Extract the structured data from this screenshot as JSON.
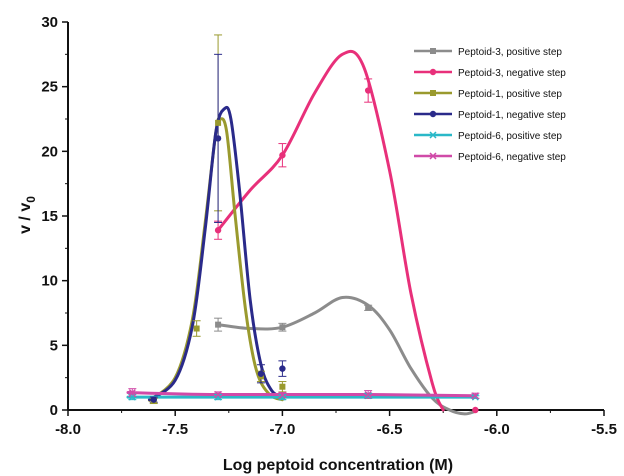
{
  "chart_data": {
    "type": "line",
    "title": "",
    "xlabel": "Log peptoid concentration (M)",
    "ylabel": "v / v",
    "ylabel_subscript": "0",
    "xlim": [
      -8.0,
      -5.5
    ],
    "ylim": [
      0,
      30
    ],
    "xticks": [
      -8.0,
      -7.5,
      -7.0,
      -6.5,
      -6.0,
      -5.5
    ],
    "xtick_labels": [
      "-8.0",
      "-7.5",
      "-7.0",
      "-6.5",
      "-6.0",
      "-5.5"
    ],
    "yticks": [
      0,
      5,
      10,
      15,
      20,
      25,
      30
    ],
    "ytick_labels": [
      "0",
      "5",
      "10",
      "15",
      "20",
      "25",
      "30"
    ],
    "grid": false,
    "legend_position": "top-right",
    "series": [
      {
        "name": "Peptoid-3, positive step",
        "color": "#8c8c8c",
        "marker": "square",
        "points": [
          {
            "x": -7.3,
            "y": 6.6,
            "err": 0.5
          },
          {
            "x": -7.0,
            "y": 6.4,
            "err": 0.3
          },
          {
            "x": -6.6,
            "y": 7.9,
            "err": 0.2
          }
        ],
        "curve": [
          [
            -7.3,
            6.6
          ],
          [
            -7.15,
            6.3
          ],
          [
            -7.0,
            6.4
          ],
          [
            -6.85,
            7.5
          ],
          [
            -6.72,
            8.7
          ],
          [
            -6.6,
            8.1
          ],
          [
            -6.5,
            6.2
          ],
          [
            -6.4,
            3.2
          ],
          [
            -6.3,
            0.9
          ],
          [
            -6.22,
            0.0
          ],
          [
            -6.15,
            -0.3
          ],
          [
            -6.1,
            -0.1
          ]
        ]
      },
      {
        "name": "Peptoid-3, negative step",
        "color": "#e8307a",
        "marker": "circle",
        "points": [
          {
            "x": -7.3,
            "y": 13.9,
            "err": 0.7
          },
          {
            "x": -7.0,
            "y": 19.7,
            "err": 0.9
          },
          {
            "x": -6.6,
            "y": 24.7,
            "err": 0.9
          },
          {
            "x": -6.1,
            "y": 0.0,
            "err": 0.0
          }
        ],
        "curve": [
          [
            -7.3,
            13.9
          ],
          [
            -7.15,
            17.0
          ],
          [
            -7.0,
            19.7
          ],
          [
            -6.85,
            24.5
          ],
          [
            -6.72,
            27.5
          ],
          [
            -6.62,
            26.5
          ],
          [
            -6.5,
            18.5
          ],
          [
            -6.4,
            9.0
          ],
          [
            -6.3,
            2.0
          ],
          [
            -6.25,
            0.0
          ]
        ]
      },
      {
        "name": "Peptoid-1, positive step",
        "color": "#9a9a2e",
        "marker": "square",
        "points": [
          {
            "x": -7.6,
            "y": 0.7,
            "err": 0.2
          },
          {
            "x": -7.4,
            "y": 6.3,
            "err": 0.6
          },
          {
            "x": -7.3,
            "y": 22.2,
            "err": 6.8
          },
          {
            "x": -7.1,
            "y": 2.6,
            "err": 0.4
          },
          {
            "x": -7.0,
            "y": 1.8,
            "err": 0.4
          }
        ],
        "curve": [
          [
            -7.62,
            0.75
          ],
          [
            -7.5,
            2.5
          ],
          [
            -7.42,
            7.0
          ],
          [
            -7.36,
            14.5
          ],
          [
            -7.31,
            21.5
          ],
          [
            -7.29,
            22.5
          ],
          [
            -7.26,
            21.5
          ],
          [
            -7.22,
            15.0
          ],
          [
            -7.17,
            7.5
          ],
          [
            -7.12,
            3.0
          ],
          [
            -7.06,
            1.2
          ],
          [
            -7.0,
            0.8
          ]
        ]
      },
      {
        "name": "Peptoid-1, negative step",
        "color": "#2a2a8a",
        "marker": "circle",
        "points": [
          {
            "x": -7.6,
            "y": 0.8,
            "err": 0.2
          },
          {
            "x": -7.3,
            "y": 21.0,
            "err": 6.5
          },
          {
            "x": -7.1,
            "y": 2.8,
            "err": 0.7
          },
          {
            "x": -7.0,
            "y": 3.2,
            "err": 0.6
          }
        ],
        "curve": [
          [
            -7.62,
            0.8
          ],
          [
            -7.5,
            2.3
          ],
          [
            -7.42,
            6.5
          ],
          [
            -7.36,
            14.0
          ],
          [
            -7.31,
            21.5
          ],
          [
            -7.27,
            23.3
          ],
          [
            -7.24,
            22.5
          ],
          [
            -7.2,
            17.0
          ],
          [
            -7.15,
            8.5
          ],
          [
            -7.1,
            3.5
          ],
          [
            -7.05,
            1.5
          ],
          [
            -7.0,
            1.0
          ]
        ]
      },
      {
        "name": "Peptoid-6, positive step",
        "color": "#2ab8c8",
        "marker": "cross",
        "points": [
          {
            "x": -7.7,
            "y": 1.0,
            "err": 0.2
          },
          {
            "x": -7.3,
            "y": 1.0,
            "err": 0.2
          },
          {
            "x": -7.0,
            "y": 1.0,
            "err": 0.2
          },
          {
            "x": -6.6,
            "y": 1.1,
            "err": 0.2
          },
          {
            "x": -6.1,
            "y": 1.0,
            "err": 0.1
          }
        ],
        "curve": [
          [
            -7.72,
            1.0
          ],
          [
            -6.1,
            1.0
          ]
        ]
      },
      {
        "name": "Peptoid-6, negative step",
        "color": "#d04aa8",
        "marker": "cross",
        "points": [
          {
            "x": -7.7,
            "y": 1.35,
            "err": 0.3
          },
          {
            "x": -7.3,
            "y": 1.2,
            "err": 0.2
          },
          {
            "x": -7.0,
            "y": 1.15,
            "err": 0.2
          },
          {
            "x": -6.6,
            "y": 1.2,
            "err": 0.3
          },
          {
            "x": -6.1,
            "y": 1.1,
            "err": 0.2
          }
        ],
        "curve": [
          [
            -7.72,
            1.35
          ],
          [
            -7.3,
            1.2
          ],
          [
            -6.6,
            1.2
          ],
          [
            -6.1,
            1.1
          ]
        ]
      }
    ]
  }
}
